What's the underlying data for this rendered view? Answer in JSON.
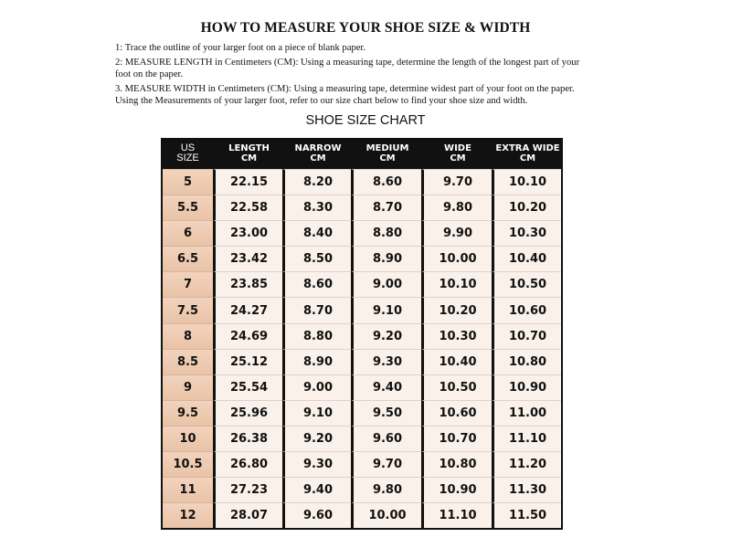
{
  "title": "HOW TO MEASURE YOUR SHOE SIZE & WIDTH",
  "instructions": [
    "1: Trace the outline of your larger foot on a piece of blank paper.",
    "2: MEASURE LENGTH in Centimeters (CM): Using a measuring tape, determine the length of the longest part of your foot on the paper.",
    "3. MEASURE WIDTH in Centimeters (CM): Using a measuring tape, determine widest part of your foot on the paper.",
    "Using the Measurements of your larger foot, refer to our size chart below to find your shoe size and width."
  ],
  "chart_title": "SHOE SIZE CHART",
  "colors": {
    "header_bg": "#111111",
    "size_column": "#ecc8ad",
    "cell_bg": "#faf1ea"
  },
  "table": {
    "headers": [
      [
        "US",
        "SIZE"
      ],
      [
        "LENGTH",
        "CM"
      ],
      [
        "NARROW",
        "CM"
      ],
      [
        "MEDIUM",
        "CM"
      ],
      [
        "WIDE",
        "CM"
      ],
      [
        "EXTRA WIDE",
        "CM"
      ]
    ],
    "rows": [
      [
        "5",
        "22.15",
        "8.20",
        "8.60",
        "9.70",
        "10.10"
      ],
      [
        "5.5",
        "22.58",
        "8.30",
        "8.70",
        "9.80",
        "10.20"
      ],
      [
        "6",
        "23.00",
        "8.40",
        "8.80",
        "9.90",
        "10.30"
      ],
      [
        "6.5",
        "23.42",
        "8.50",
        "8.90",
        "10.00",
        "10.40"
      ],
      [
        "7",
        "23.85",
        "8.60",
        "9.00",
        "10.10",
        "10.50"
      ],
      [
        "7.5",
        "24.27",
        "8.70",
        "9.10",
        "10.20",
        "10.60"
      ],
      [
        "8",
        "24.69",
        "8.80",
        "9.20",
        "10.30",
        "10.70"
      ],
      [
        "8.5",
        "25.12",
        "8.90",
        "9.30",
        "10.40",
        "10.80"
      ],
      [
        "9",
        "25.54",
        "9.00",
        "9.40",
        "10.50",
        "10.90"
      ],
      [
        "9.5",
        "25.96",
        "9.10",
        "9.50",
        "10.60",
        "11.00"
      ],
      [
        "10",
        "26.38",
        "9.20",
        "9.60",
        "10.70",
        "11.10"
      ],
      [
        "10.5",
        "26.80",
        "9.30",
        "9.70",
        "10.80",
        "11.20"
      ],
      [
        "11",
        "27.23",
        "9.40",
        "9.80",
        "10.90",
        "11.30"
      ],
      [
        "12",
        "28.07",
        "9.60",
        "10.00",
        "11.10",
        "11.50"
      ]
    ]
  }
}
